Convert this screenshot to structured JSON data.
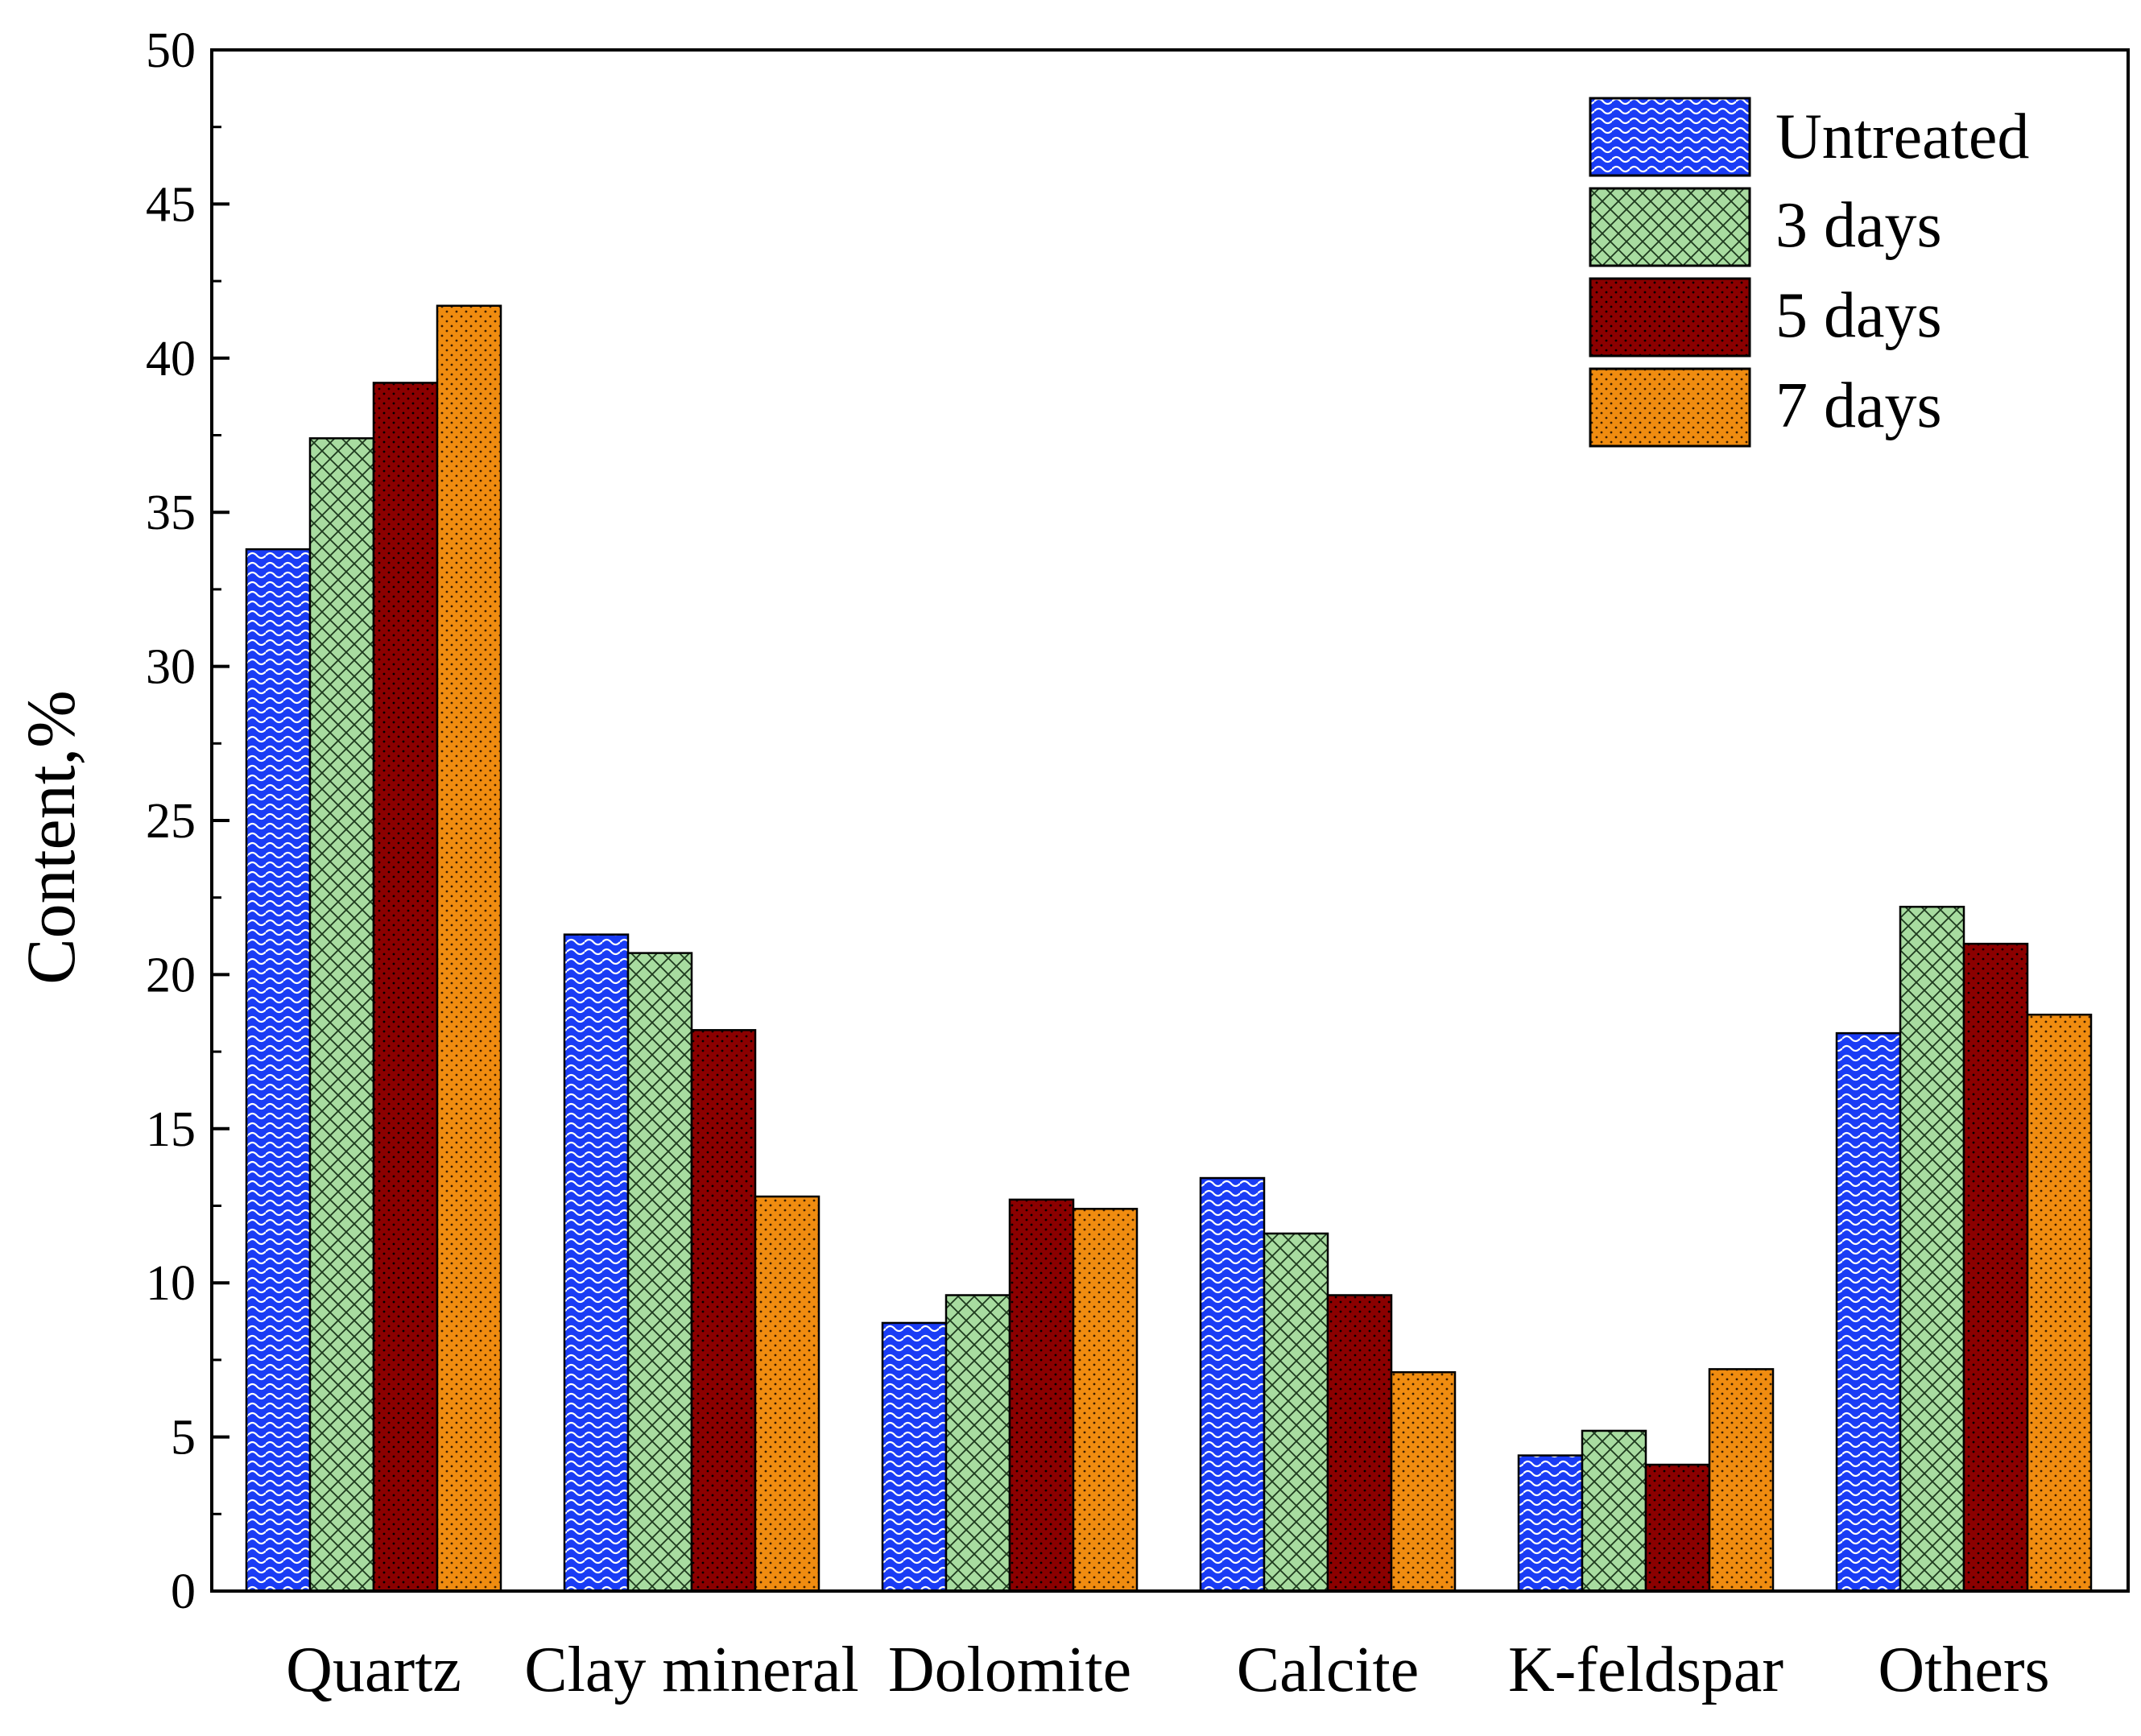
{
  "chart_data": {
    "type": "bar",
    "title": "",
    "xlabel": "",
    "ylabel": "Content,%",
    "ylim": [
      0,
      50
    ],
    "yticks": [
      "0",
      "5",
      "10",
      "15",
      "20",
      "25",
      "30",
      "35",
      "40",
      "45",
      "50"
    ],
    "categories": [
      "Quartz",
      "Clay mineral",
      "Dolomite",
      "Calcite",
      "K-feldspar",
      "Others"
    ],
    "legend_position": "top-right",
    "grid": false,
    "series": [
      {
        "name": "Untreated",
        "color": "#1a3cf5",
        "pattern": "wave",
        "values": [
          33.8,
          21.3,
          8.7,
          13.4,
          4.4,
          18.1
        ]
      },
      {
        "name": "3 days",
        "color": "#a8dca0",
        "pattern": "crosshatch",
        "values": [
          37.4,
          20.7,
          9.6,
          11.6,
          5.2,
          22.2
        ]
      },
      {
        "name": "5 days",
        "color": "#8b0000",
        "pattern": "dots",
        "values": [
          39.2,
          18.2,
          12.7,
          9.6,
          4.1,
          21.0
        ]
      },
      {
        "name": "7 days",
        "color": "#f08c10",
        "pattern": "dots",
        "values": [
          41.7,
          12.8,
          12.4,
          7.1,
          7.2,
          18.7
        ]
      }
    ]
  }
}
